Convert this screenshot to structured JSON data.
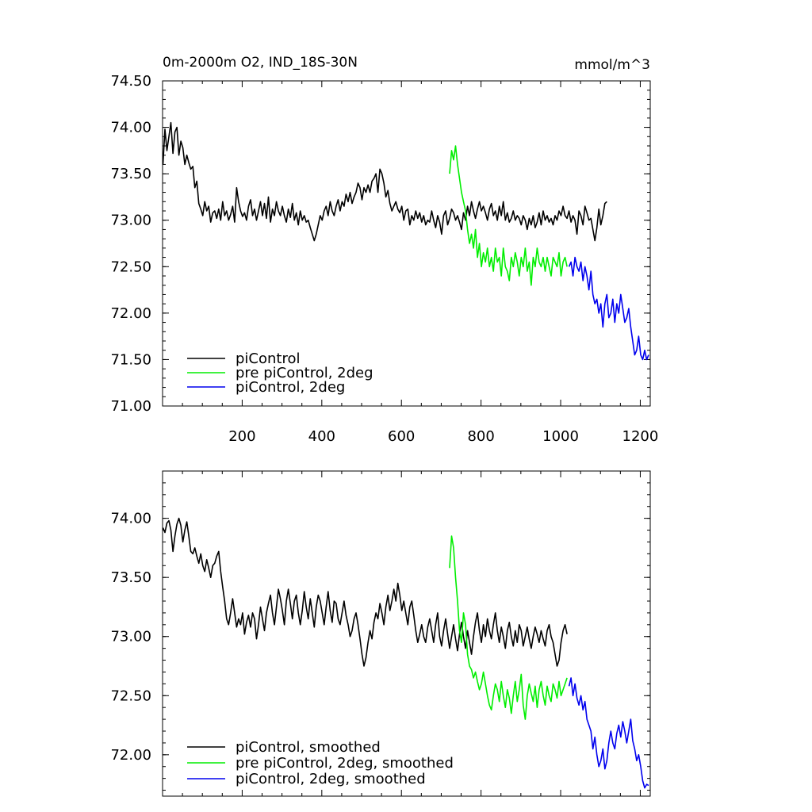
{
  "chart_data": [
    {
      "type": "line",
      "title_left": "0m-2000m O2, IND_18S-30N",
      "title_right": "mmol/m^3",
      "xlim": [
        0,
        1225
      ],
      "ylim": [
        71.0,
        74.5
      ],
      "xticks": [
        200,
        400,
        600,
        800,
        1000,
        1200
      ],
      "yticks": [
        71.0,
        71.5,
        72.0,
        72.5,
        73.0,
        73.5,
        74.0,
        74.5
      ],
      "xtick_labels": [
        "200",
        "400",
        "600",
        "800",
        "1000",
        "1200"
      ],
      "ytick_labels": [
        "71.00",
        "71.50",
        "72.00",
        "72.50",
        "73.00",
        "73.50",
        "74.00",
        "74.50"
      ],
      "legend": [
        "piControl",
        "pre piControl, 2deg",
        "piControl, 2deg"
      ],
      "series": [
        {
          "name": "piControl",
          "color": "#000000",
          "x_start": 1,
          "x_step": 5,
          "values": [
            73.6,
            73.98,
            73.75,
            73.9,
            74.05,
            73.72,
            73.95,
            74.0,
            73.7,
            73.85,
            73.78,
            73.6,
            73.7,
            73.62,
            73.55,
            73.58,
            73.35,
            73.42,
            73.18,
            73.12,
            73.05,
            73.2,
            73.1,
            73.15,
            72.98,
            73.08,
            73.1,
            73.02,
            73.12,
            73.0,
            73.2,
            73.05,
            73.1,
            73.0,
            73.06,
            73.15,
            72.98,
            73.35,
            73.2,
            73.1,
            73.04,
            73.08,
            73.0,
            73.15,
            73.22,
            73.05,
            73.12,
            73.0,
            73.1,
            73.2,
            73.05,
            73.18,
            73.02,
            73.25,
            72.98,
            73.12,
            73.05,
            73.2,
            73.1,
            73.05,
            73.15,
            73.05,
            72.98,
            73.12,
            73.03,
            73.18,
            73.0,
            73.08,
            72.95,
            73.1,
            73.0,
            73.05,
            72.98,
            73.0,
            72.92,
            72.85,
            72.78,
            72.85,
            72.95,
            73.05,
            73.0,
            73.1,
            73.15,
            73.05,
            73.2,
            73.1,
            73.05,
            73.15,
            73.22,
            73.1,
            73.2,
            73.15,
            73.28,
            73.2,
            73.3,
            73.18,
            73.25,
            73.3,
            73.4,
            73.35,
            73.22,
            73.35,
            73.3,
            73.38,
            73.3,
            73.42,
            73.45,
            73.5,
            73.3,
            73.55,
            73.5,
            73.4,
            73.25,
            73.32,
            73.18,
            73.1,
            73.15,
            73.2,
            73.12,
            73.08,
            73.15,
            73.0,
            73.1,
            73.12,
            72.95,
            73.05,
            73.0,
            73.1,
            73.02,
            73.08,
            72.98,
            73.05,
            72.95,
            73.0,
            72.98,
            73.1,
            73.0,
            72.92,
            73.05,
            72.98,
            72.85,
            73.05,
            73.1,
            72.95,
            73.02,
            73.12,
            73.08,
            73.0,
            73.05,
            72.98,
            72.9,
            73.08,
            73.0,
            73.15,
            73.05,
            73.2,
            73.1,
            73.02,
            73.12,
            73.2,
            73.1,
            73.15,
            73.08,
            73.0,
            73.12,
            73.18,
            73.05,
            73.1,
            73.0,
            73.15,
            73.05,
            73.2,
            73.0,
            73.08,
            72.98,
            73.02,
            73.1,
            73.0,
            73.05,
            73.02,
            72.95,
            73.05,
            73.0,
            72.9,
            73.02,
            72.95,
            73.05,
            72.92,
            72.98,
            73.08,
            72.95,
            73.1,
            73.0,
            73.05,
            72.98,
            73.02,
            72.95,
            73.05,
            73.0,
            73.1,
            73.05,
            73.15,
            73.05,
            73.02,
            73.1,
            72.98,
            73.05,
            73.0,
            72.85,
            73.1,
            73.05,
            72.95,
            73.15,
            73.08,
            73.0,
            73.02,
            72.9,
            72.78,
            72.92,
            73.12,
            72.95,
            73.05,
            73.18,
            73.2
          ]
        },
        {
          "name": "pre piControl, 2deg",
          "color": "#00ee00",
          "x_start": 721,
          "x_step": 5,
          "values": [
            73.5,
            73.75,
            73.65,
            73.8,
            73.6,
            73.45,
            73.3,
            73.2,
            73.1,
            72.9,
            72.75,
            72.85,
            72.7,
            72.9,
            72.6,
            72.75,
            72.5,
            72.65,
            72.55,
            72.7,
            72.5,
            72.6,
            72.45,
            72.7,
            72.55,
            72.6,
            72.4,
            72.7,
            72.5,
            72.45,
            72.35,
            72.6,
            72.5,
            72.65,
            72.55,
            72.4,
            72.6,
            72.5,
            72.7,
            72.45,
            72.55,
            72.3,
            72.6,
            72.5,
            72.7,
            72.55,
            72.5,
            72.6,
            72.45,
            72.6,
            72.5,
            72.4,
            72.6,
            72.55,
            72.5,
            72.65,
            72.4,
            72.55,
            72.6,
            72.5
          ]
        },
        {
          "name": "piControl, 2deg",
          "color": "#0000ee",
          "x_start": 1021,
          "x_step": 5,
          "values": [
            72.5,
            72.55,
            72.4,
            72.6,
            72.5,
            72.45,
            72.55,
            72.35,
            72.5,
            72.4,
            72.25,
            72.45,
            72.2,
            72.1,
            72.15,
            72.0,
            72.1,
            71.85,
            72.1,
            72.2,
            71.95,
            72.0,
            72.15,
            71.9,
            72.1,
            72.0,
            72.2,
            72.05,
            71.9,
            71.95,
            72.05,
            71.85,
            71.7,
            71.55,
            71.6,
            71.75,
            71.55,
            71.5,
            71.6,
            71.5,
            71.55
          ]
        }
      ]
    },
    {
      "type": "line",
      "xlim": [
        0,
        1225
      ],
      "ylim": [
        71.65,
        74.4
      ],
      "xticks": [
        200,
        400,
        600,
        800,
        1000,
        1200
      ],
      "yticks": [
        72.0,
        72.5,
        73.0,
        73.5,
        74.0
      ],
      "ytick_labels": [
        "72.00",
        "72.50",
        "73.00",
        "73.50",
        "74.00"
      ],
      "legend": [
        "piControl, smoothed",
        "pre piControl, 2deg, smoothed",
        "piControl, 2deg, smoothed"
      ],
      "series": [
        {
          "name": "piControl, smoothed",
          "color": "#000000",
          "x_start": 1,
          "x_step": 5,
          "values": [
            73.92,
            73.88,
            73.96,
            73.98,
            73.9,
            73.72,
            73.85,
            73.95,
            74.0,
            73.94,
            73.8,
            73.9,
            73.97,
            73.85,
            73.72,
            73.7,
            73.75,
            73.68,
            73.62,
            73.7,
            73.6,
            73.55,
            73.65,
            73.58,
            73.5,
            73.6,
            73.62,
            73.68,
            73.72,
            73.55,
            73.42,
            73.3,
            73.15,
            73.1,
            73.2,
            73.32,
            73.2,
            73.08,
            73.15,
            73.1,
            73.2,
            73.02,
            73.12,
            73.18,
            73.08,
            73.2,
            73.15,
            72.98,
            73.1,
            73.25,
            73.15,
            73.05,
            73.2,
            73.28,
            73.35,
            73.2,
            73.1,
            73.25,
            73.4,
            73.32,
            73.22,
            73.1,
            73.3,
            73.4,
            73.28,
            73.15,
            73.3,
            73.35,
            73.2,
            73.1,
            73.22,
            73.38,
            73.25,
            73.15,
            73.32,
            73.2,
            73.08,
            73.25,
            73.35,
            73.3,
            73.2,
            73.1,
            73.25,
            73.38,
            73.22,
            73.12,
            73.3,
            73.28,
            73.15,
            73.1,
            73.2,
            73.3,
            73.18,
            73.1,
            73.0,
            73.05,
            73.15,
            73.2,
            73.1,
            72.98,
            72.85,
            72.75,
            72.82,
            72.95,
            73.05,
            72.98,
            73.12,
            73.2,
            73.15,
            73.28,
            73.2,
            73.1,
            73.25,
            73.35,
            73.22,
            73.3,
            73.4,
            73.3,
            73.45,
            73.35,
            73.22,
            73.3,
            73.2,
            73.1,
            73.25,
            73.3,
            73.18,
            73.05,
            72.95,
            73.02,
            73.1,
            73.0,
            72.95,
            73.08,
            73.15,
            73.05,
            72.95,
            73.1,
            73.2,
            73.0,
            72.92,
            73.05,
            73.15,
            73.02,
            72.9,
            73.0,
            73.1,
            72.98,
            72.88,
            73.02,
            73.12,
            73.0,
            72.9,
            73.05,
            72.95,
            72.85,
            73.0,
            73.12,
            73.2,
            73.05,
            72.95,
            73.1,
            73.0,
            73.15,
            73.05,
            72.98,
            73.1,
            73.2,
            73.05,
            72.95,
            73.08,
            73.0,
            72.9,
            73.05,
            73.12,
            73.0,
            72.92,
            73.05,
            72.95,
            73.1,
            73.05,
            72.92,
            73.0,
            73.08,
            72.98,
            72.9,
            73.0,
            73.08,
            73.02,
            72.95,
            73.05,
            72.98,
            72.92,
            73.05,
            73.1,
            73.0,
            72.95,
            72.85,
            72.75,
            72.8,
            72.95,
            73.05,
            73.1,
            73.02
          ]
        },
        {
          "name": "pre piControl, 2deg, smoothed",
          "color": "#00ee00",
          "x_start": 721,
          "x_step": 5,
          "values": [
            73.58,
            73.85,
            73.75,
            73.5,
            73.3,
            73.05,
            72.95,
            73.2,
            73.1,
            72.85,
            72.75,
            72.72,
            72.65,
            72.7,
            72.62,
            72.55,
            72.6,
            72.7,
            72.6,
            72.5,
            72.42,
            72.38,
            72.5,
            72.6,
            72.55,
            72.45,
            72.62,
            72.5,
            72.4,
            72.55,
            72.48,
            72.35,
            72.5,
            72.62,
            72.45,
            72.55,
            72.68,
            72.42,
            72.3,
            72.5,
            72.6,
            72.52,
            72.45,
            72.58,
            72.4,
            72.55,
            72.62,
            72.5,
            72.42,
            72.58,
            72.5,
            72.45,
            72.6,
            72.55,
            72.48,
            72.62,
            72.5,
            72.55,
            72.6,
            72.65
          ]
        },
        {
          "name": "piControl, 2deg, smoothed",
          "color": "#0000ee",
          "x_start": 1021,
          "x_step": 5,
          "values": [
            72.58,
            72.65,
            72.5,
            72.6,
            72.48,
            72.42,
            72.5,
            72.38,
            72.45,
            72.3,
            72.25,
            72.2,
            72.05,
            72.15,
            72.0,
            71.9,
            71.95,
            72.05,
            71.88,
            71.95,
            72.1,
            72.2,
            72.1,
            72.05,
            72.18,
            72.25,
            72.15,
            72.28,
            72.2,
            72.1,
            72.2,
            72.3,
            72.12,
            72.05,
            71.95,
            72.0,
            71.9,
            71.78,
            71.72,
            71.75,
            71.74
          ]
        }
      ]
    }
  ]
}
